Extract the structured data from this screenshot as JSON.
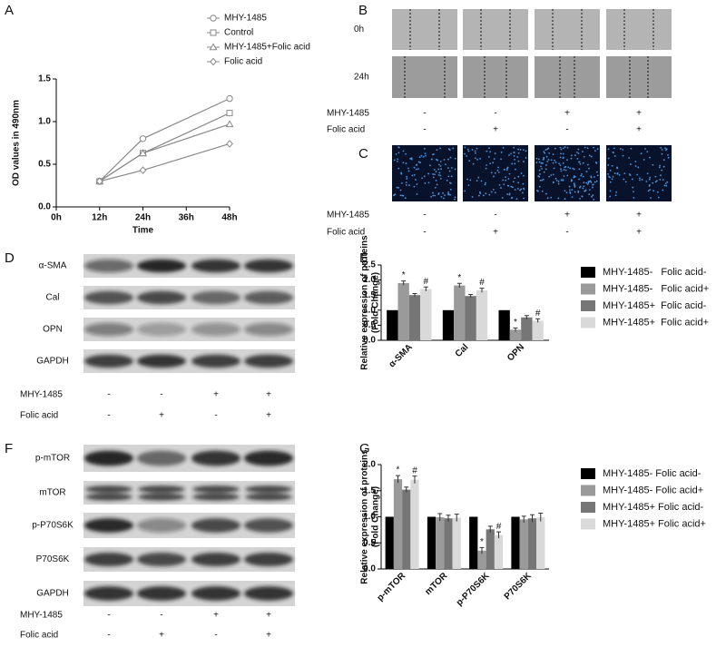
{
  "chart_data": [
    {
      "type": "line",
      "xlabel": "Time",
      "ylabel": "OD values in 490nm",
      "x": [
        12,
        24,
        48
      ],
      "xlim": [
        0,
        48
      ],
      "xticks": [
        {
          "value": 0,
          "label": "0h"
        },
        {
          "value": 12,
          "label": "12h"
        },
        {
          "value": 24,
          "label": "24h"
        },
        {
          "value": 36,
          "label": "36h"
        },
        {
          "value": 48,
          "label": "48h"
        }
      ],
      "ylim": [
        0,
        1.5
      ],
      "yticks": [
        {
          "value": 0,
          "label": "0.0"
        },
        {
          "value": 0.5,
          "label": "0.5"
        },
        {
          "value": 1,
          "label": "1.0"
        },
        {
          "value": 1.5,
          "label": "1.5"
        }
      ],
      "series": [
        {
          "name": "MHY-1485",
          "color": "#888888",
          "marker": "circle",
          "values": [
            0.3,
            0.8,
            1.27
          ]
        },
        {
          "name": "Control",
          "color": "#888888",
          "marker": "square",
          "values": [
            0.3,
            0.63,
            1.1
          ]
        },
        {
          "name": "MHY-1485+Folic acid",
          "color": "#888888",
          "marker": "triangle",
          "values": [
            0.3,
            0.63,
            0.97
          ]
        },
        {
          "name": "Folic acid",
          "color": "#888888",
          "marker": "diamond",
          "values": [
            0.3,
            0.43,
            0.74
          ]
        }
      ]
    },
    {
      "type": "bar",
      "ylabel": [
        "Relative expression of proteins",
        "(Fold Change)"
      ],
      "categories": [
        "α-SMA",
        "Cal",
        "OPN"
      ],
      "ylim": [
        0,
        2.5
      ],
      "yticks": [
        {
          "value": 0,
          "label": "0.0"
        },
        {
          "value": 0.5,
          "label": "0.5"
        },
        {
          "value": 1,
          "label": "1.0"
        },
        {
          "value": 1.5,
          "label": "1.5"
        },
        {
          "value": 2,
          "label": "2.0"
        },
        {
          "value": 2.5,
          "label": "2.5"
        }
      ],
      "series": [
        {
          "name": "MHY-1485-   Folic acid-",
          "color": "#000000",
          "values": [
            1,
            1,
            1
          ],
          "errors": [
            0,
            0,
            0
          ]
        },
        {
          "name": "MHY-1485-   Folic acid+",
          "color": "#9a9a9a",
          "values": [
            1.9,
            1.82,
            0.35
          ],
          "errors": [
            0.07,
            0.07,
            0.06
          ],
          "markers": [
            "*",
            "*",
            "*"
          ]
        },
        {
          "name": "MHY-1485+  Folic acid-",
          "color": "#767676",
          "values": [
            1.5,
            1.47,
            0.76
          ],
          "errors": [
            0.05,
            0.05,
            0.06
          ]
        },
        {
          "name": "MHY-1485+  Folic acid+",
          "color": "#d9d9d9",
          "values": [
            1.7,
            1.66,
            0.65
          ],
          "errors": [
            0.07,
            0.07,
            0.06
          ],
          "markers": [
            "#",
            "#",
            "#"
          ]
        }
      ]
    },
    {
      "type": "bar",
      "ylabel": [
        "Relative expression of proteins",
        "(Fold Change)"
      ],
      "categories": [
        "p-mTOR",
        "mTOR",
        "p-P70S6K",
        "P70S6K"
      ],
      "ylim": [
        0,
        2
      ],
      "yticks": [
        {
          "value": 0,
          "label": "0.0"
        },
        {
          "value": 0.5,
          "label": "0.5"
        },
        {
          "value": 1,
          "label": "1.0"
        },
        {
          "value": 1.5,
          "label": "1.5"
        },
        {
          "value": 2,
          "label": "2.0"
        }
      ],
      "series": [
        {
          "name": "MHY-1485- Folic acid-",
          "color": "#000000",
          "values": [
            1,
            1,
            1,
            1
          ],
          "errors": [
            0,
            0,
            0,
            0
          ]
        },
        {
          "name": "MHY-1485- Folic acid+",
          "color": "#9a9a9a",
          "values": [
            1.72,
            0.99,
            0.35,
            0.95
          ],
          "errors": [
            0.07,
            0.07,
            0.06,
            0.06
          ],
          "markers": [
            "*",
            null,
            "*",
            null
          ]
        },
        {
          "name": "MHY-1485+ Folic acid-",
          "color": "#767676",
          "values": [
            1.52,
            0.97,
            0.76,
            0.97
          ],
          "errors": [
            0.05,
            0.06,
            0.06,
            0.07
          ]
        },
        {
          "name": "MHY-1485+ Folic acid+",
          "color": "#d9d9d9",
          "values": [
            1.71,
            0.98,
            0.65,
            0.99
          ],
          "errors": [
            0.07,
            0.07,
            0.06,
            0.08
          ],
          "markers": [
            "#",
            null,
            "#",
            null
          ]
        }
      ]
    }
  ],
  "letters": [
    "A",
    "B",
    "C",
    "D",
    "E",
    "F",
    "G"
  ],
  "migration_rows": [
    "0h",
    "24h"
  ],
  "blots": {
    "D": [
      "α-SMA",
      "Cal",
      "OPN",
      "GAPDH"
    ],
    "F": [
      "p-mTOR",
      "mTOR",
      "p-P70S6K",
      "P70S6K",
      "GAPDH"
    ]
  },
  "treatments": {
    "B": [
      {
        "name": "MHY-1485",
        "signs": [
          "-",
          "-",
          "+",
          "+"
        ]
      },
      {
        "name": "Folic acid",
        "signs": [
          "-",
          "+",
          "-",
          "+"
        ]
      }
    ],
    "C": [
      {
        "name": "MHY-1485",
        "signs": [
          "-",
          "-",
          "+",
          "+"
        ]
      },
      {
        "name": "Folic acid",
        "signs": [
          "-",
          "+",
          "-",
          "+"
        ]
      }
    ],
    "D": [
      {
        "name": "MHY-1485",
        "signs": [
          "-",
          "-",
          "+",
          "+"
        ]
      },
      {
        "name": "Folic acid",
        "signs": [
          "-",
          "+",
          "-",
          "+"
        ]
      }
    ],
    "F": [
      {
        "name": "MHY-1485",
        "signs": [
          "-",
          "-",
          "+",
          "+"
        ]
      },
      {
        "name": "Folic acid",
        "signs": [
          "-",
          "+",
          "-",
          "+"
        ]
      }
    ]
  }
}
